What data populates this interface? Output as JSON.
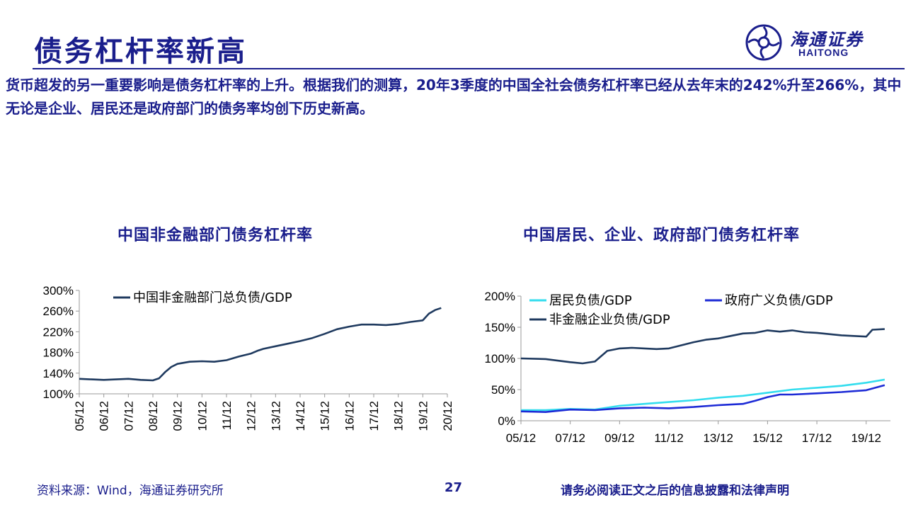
{
  "page": {
    "title": "债务杠杆率新高",
    "intro": "货币超发的另一重要影响是债务杠杆率的上升。根据我们的测算，20年3季度的中国全社会债务杠杆率已经从去年末的242%升至266%，其中无论是企业、居民还是政府部门的债务率均创下历史新高。",
    "logo_cn": "海通证券",
    "logo_en": "HAITONG",
    "footer_source": "资料来源：Wind，海通证券研究所",
    "footer_page": "27",
    "footer_notice": "请务必阅读正文之后的信息披露和法律声明"
  },
  "colors": {
    "accent": "#1a1e8c",
    "series_dark": "#1f3a5f",
    "series_cyan": "#33ddee",
    "series_blue": "#1d2bd6"
  },
  "chart_data": [
    {
      "type": "line",
      "title": "中国非金融部门债务杠杆率",
      "xlabel": "",
      "ylabel": "",
      "ylim": [
        100,
        300
      ],
      "y_ticks": [
        "300%",
        "260%",
        "220%",
        "180%",
        "140%",
        "100%"
      ],
      "y_tick_values": [
        300,
        260,
        220,
        180,
        140,
        100
      ],
      "x_ticks": [
        "05/12",
        "06/12",
        "07/12",
        "08/12",
        "09/12",
        "10/12",
        "11/12",
        "12/12",
        "13/12",
        "14/12",
        "15/12",
        "16/12",
        "17/12",
        "18/12",
        "19/12",
        "20/12"
      ],
      "x_tick_values": [
        2005.917,
        2006.917,
        2007.917,
        2008.917,
        2009.917,
        2010.917,
        2011.917,
        2012.917,
        2013.917,
        2014.917,
        2015.917,
        2016.917,
        2017.917,
        2018.917,
        2019.917,
        2020.917
      ],
      "xlim": [
        2005.917,
        2020.917
      ],
      "legend_position": "top",
      "grid": false,
      "series": [
        {
          "name": "中国非金融部门总负债/GDP",
          "color": "#1f3a5f",
          "x": [
            2005.917,
            2006.417,
            2006.917,
            2007.417,
            2007.917,
            2008.417,
            2008.917,
            2009.167,
            2009.417,
            2009.667,
            2009.917,
            2010.417,
            2010.917,
            2011.417,
            2011.917,
            2012.417,
            2012.917,
            2013.167,
            2013.417,
            2013.917,
            2014.417,
            2014.917,
            2015.417,
            2015.917,
            2016.417,
            2016.917,
            2017.417,
            2017.917,
            2018.417,
            2018.917,
            2019.417,
            2019.917,
            2020.167,
            2020.417,
            2020.667
          ],
          "y": [
            129,
            128,
            127,
            128,
            129,
            127,
            126,
            130,
            142,
            152,
            158,
            162,
            163,
            162,
            165,
            172,
            178,
            183,
            187,
            192,
            197,
            202,
            208,
            216,
            225,
            230,
            234,
            234,
            233,
            235,
            239,
            242,
            255,
            262,
            266
          ]
        }
      ]
    },
    {
      "type": "line",
      "title": "中国居民、企业、政府部门债务杠杆率",
      "xlabel": "",
      "ylabel": "",
      "ylim": [
        0,
        200
      ],
      "y_ticks": [
        "200%",
        "150%",
        "100%",
        "50%",
        "0%"
      ],
      "y_tick_values": [
        200,
        150,
        100,
        50,
        0
      ],
      "x_ticks": [
        "05/12",
        "07/12",
        "09/12",
        "11/12",
        "13/12",
        "15/12",
        "17/12",
        "19/12"
      ],
      "x_tick_values": [
        2005.917,
        2007.917,
        2009.917,
        2011.917,
        2013.917,
        2015.917,
        2017.917,
        2019.917
      ],
      "xlim": [
        2005.917,
        2020.9
      ],
      "legend_position": "top",
      "grid": false,
      "series": [
        {
          "name": "居民负债/GDP",
          "color": "#33ddee",
          "x": [
            2005.917,
            2006.917,
            2007.917,
            2008.917,
            2009.917,
            2010.917,
            2011.917,
            2012.917,
            2013.917,
            2014.917,
            2015.917,
            2016.917,
            2017.917,
            2018.917,
            2019.917,
            2020.667
          ],
          "y": [
            17,
            17,
            19,
            18,
            24,
            27,
            30,
            33,
            37,
            40,
            45,
            50,
            53,
            56,
            61,
            66
          ]
        },
        {
          "name": "政府广义负债/GDP",
          "color": "#1d2bd6",
          "x": [
            2005.917,
            2006.917,
            2007.917,
            2008.917,
            2009.917,
            2010.917,
            2011.917,
            2012.917,
            2013.917,
            2014.917,
            2015.417,
            2015.917,
            2016.417,
            2016.917,
            2017.917,
            2018.917,
            2019.917,
            2020.667
          ],
          "y": [
            15,
            14,
            18,
            17,
            20,
            21,
            20,
            22,
            25,
            27,
            32,
            38,
            42,
            42,
            44,
            46,
            49,
            57
          ]
        },
        {
          "name": "非金融企业负债/GDP",
          "color": "#1f3a5f",
          "x": [
            2005.917,
            2006.917,
            2007.917,
            2008.417,
            2008.917,
            2009.417,
            2009.917,
            2010.417,
            2010.917,
            2011.417,
            2011.917,
            2012.417,
            2012.917,
            2013.417,
            2013.917,
            2014.417,
            2014.917,
            2015.417,
            2015.917,
            2016.417,
            2016.917,
            2017.417,
            2017.917,
            2018.417,
            2018.917,
            2019.417,
            2019.917,
            2020.167,
            2020.667
          ],
          "y": [
            100,
            99,
            94,
            92,
            95,
            112,
            116,
            117,
            116,
            115,
            116,
            121,
            126,
            130,
            132,
            136,
            140,
            141,
            145,
            143,
            145,
            142,
            141,
            139,
            137,
            136,
            135,
            146,
            147
          ]
        }
      ]
    }
  ]
}
